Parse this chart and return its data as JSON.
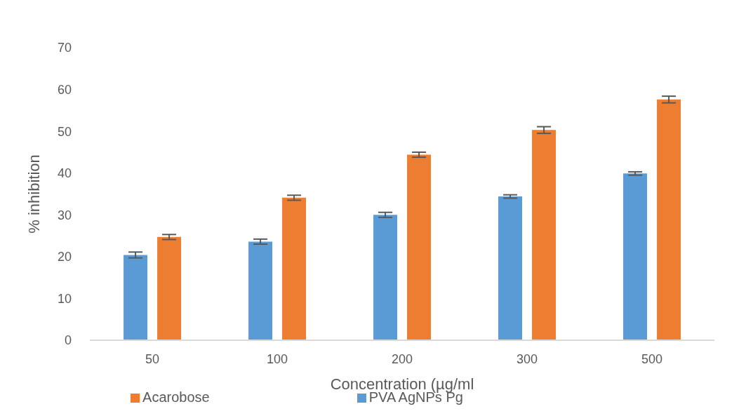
{
  "chart_data": {
    "type": "bar",
    "xlabel": "Concentration (µg/ml",
    "ylabel": "% inhibition",
    "categories": [
      "50",
      "100",
      "200",
      "300",
      "500"
    ],
    "series": [
      {
        "name": "PVA AgNPs Pg",
        "color": "#5b9bd5",
        "values": [
          20.4,
          23.6,
          30.0,
          34.4,
          39.9
        ],
        "errors": [
          0.7,
          0.6,
          0.6,
          0.4,
          0.4
        ]
      },
      {
        "name": "Acarobose",
        "color": "#ed7d31",
        "values": [
          24.7,
          34.1,
          44.4,
          50.3,
          57.6
        ],
        "errors": [
          0.6,
          0.6,
          0.6,
          0.8,
          0.8
        ]
      }
    ],
    "ylim": [
      0,
      70
    ],
    "yticks": [
      0,
      10,
      20,
      30,
      40,
      50,
      60,
      70
    ],
    "grid": false,
    "legend": "bottom"
  }
}
